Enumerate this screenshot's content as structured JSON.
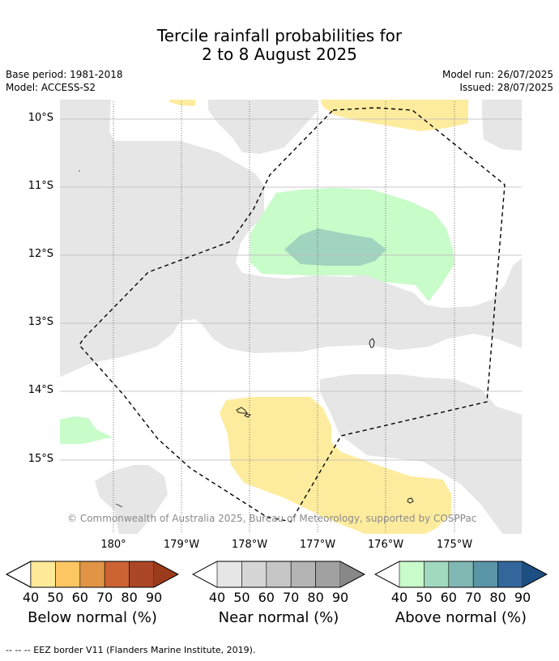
{
  "title": {
    "line1": "Tercile rainfall probabilities for",
    "line2": "2 to 8 August 2025"
  },
  "meta": {
    "base_period": "Base period: 1981-2018",
    "model": "Model: ACCESS-S2",
    "model_run": "Model run: 26/07/2025",
    "issued": "Issued: 28/07/2025"
  },
  "axes": {
    "lat_labels": [
      "10°S",
      "11°S",
      "12°S",
      "13°S",
      "14°S",
      "15°S"
    ],
    "lon_labels": [
      "180°",
      "179°W",
      "178°W",
      "177°W",
      "176°W",
      "175°W"
    ]
  },
  "copyright": "© Commonwealth of Australia 2025, Bureau of Meteorology, supported by COSPPac",
  "colorbars": [
    {
      "title": "Below normal (%)",
      "ticks": [
        "40",
        "50",
        "60",
        "70",
        "80",
        "90"
      ],
      "under_color": "#ffffff",
      "colors": [
        "#fee999",
        "#fdc663",
        "#e19445",
        "#cc6333",
        "#ab4626"
      ],
      "over_color": "#9c3a1c"
    },
    {
      "title": "Near normal (%)",
      "ticks": [
        "40",
        "50",
        "60",
        "70",
        "80",
        "90"
      ],
      "under_color": "#ffffff",
      "colors": [
        "#e6e6e6",
        "#d6d6d6",
        "#c6c6c6",
        "#b4b4b4",
        "#a1a1a1"
      ],
      "over_color": "#888888"
    },
    {
      "title": "Above normal (%)",
      "ticks": [
        "40",
        "50",
        "60",
        "70",
        "80",
        "90"
      ],
      "under_color": "#ffffff",
      "colors": [
        "#c9fcca",
        "#a1d9be",
        "#7fb7b3",
        "#5a95a7",
        "#33679b"
      ],
      "over_color": "#1d4f82"
    }
  ],
  "map_colors": {
    "near_normal_40_50": "#e6e6e6",
    "below_normal_40_50": "#feec9e",
    "above_normal_40_50": "#c8fcc9",
    "above_normal_50_60": "#a1d4be"
  },
  "footnote": "--  --  -- EEZ border V11 (Flanders Marine Institute, 2019)."
}
